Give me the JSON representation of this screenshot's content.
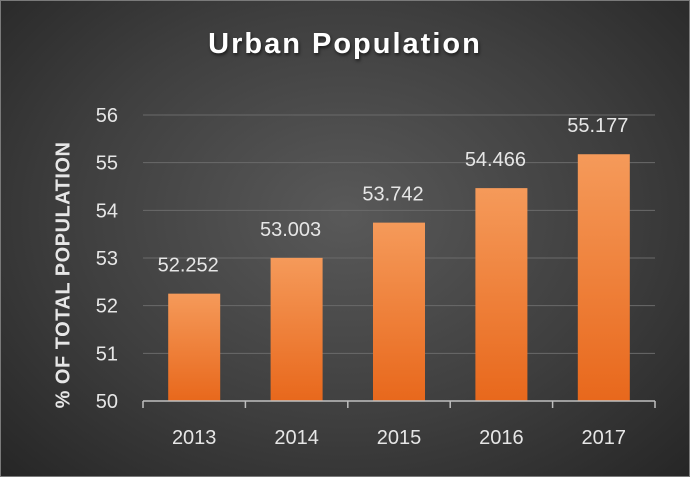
{
  "chart_data": {
    "type": "bar",
    "title": "Urban Population",
    "xlabel": "",
    "ylabel": "% OF TOTAL POPULATION",
    "categories": [
      "2013",
      "2014",
      "2015",
      "2016",
      "2017"
    ],
    "values": [
      52.252,
      53.003,
      53.742,
      54.466,
      55.177
    ],
    "value_labels": [
      "52.252",
      "53.003",
      "53.742",
      "54.466",
      "55.177"
    ],
    "ylim": [
      50,
      56
    ],
    "yticks": [
      50,
      51,
      52,
      53,
      54,
      55,
      56
    ],
    "grid": true,
    "legend": "none",
    "colors": {
      "bar_top": "#f59a5a",
      "bar_bottom": "#e8681c",
      "grid": "#6a6a6a",
      "axis": "#bfbfbf"
    }
  }
}
